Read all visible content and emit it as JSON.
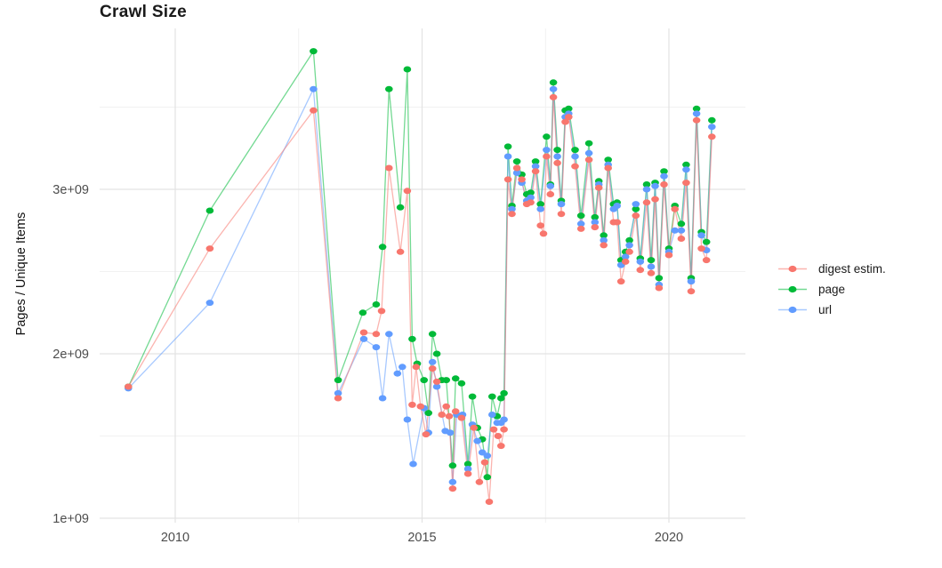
{
  "title": "Crawl Size",
  "y_axis": {
    "title": "Pages / Unique Items"
  },
  "legend": {
    "items": [
      {
        "label": "digest estim.",
        "color": "#F8766D"
      },
      {
        "label": "page",
        "color": "#00BA38"
      },
      {
        "label": "url",
        "color": "#619CFF"
      }
    ]
  },
  "chart_data": {
    "type": "line",
    "title": "Crawl Size",
    "xlabel": "",
    "ylabel": "Pages / Unique Items",
    "value_unit": "billions (1e9) of pages / unique items",
    "x_unit": "year (decimal, crawl date)",
    "xlim": [
      2008.47,
      2021.55
    ],
    "ylim": [
      0.97,
      4.01
    ],
    "grid": {
      "x_major": [
        2010,
        2015,
        2020
      ],
      "x_minor": [
        2012.5,
        2017.5
      ],
      "y_major": [
        1,
        2,
        3
      ],
      "y_minor": [
        1.5,
        2.5,
        3.5
      ]
    },
    "x_ticks": [
      {
        "t": 2010,
        "label": "2010"
      },
      {
        "t": 2015,
        "label": "2015"
      },
      {
        "t": 2020,
        "label": "2020"
      }
    ],
    "y_ticks": [
      {
        "v": 1,
        "label": "1e+09"
      },
      {
        "v": 2,
        "label": "2e+09"
      },
      {
        "v": 3,
        "label": "3e+09"
      }
    ],
    "legend_position": "right",
    "series": [
      {
        "id": "page",
        "name": "page",
        "color": "#00BA38",
        "points": [
          [
            2009.05,
            1.8
          ],
          [
            2010.7,
            2.87
          ],
          [
            2012.8,
            3.84
          ],
          [
            2013.3,
            1.84
          ],
          [
            2013.8,
            2.25
          ],
          [
            2014.07,
            2.3
          ],
          [
            2014.2,
            2.65
          ],
          [
            2014.33,
            3.61
          ],
          [
            2014.56,
            2.89
          ],
          [
            2014.7,
            3.73
          ],
          [
            2014.8,
            2.09
          ],
          [
            2014.9,
            1.94
          ],
          [
            2015.04,
            1.84
          ],
          [
            2015.13,
            1.64
          ],
          [
            2015.21,
            2.12
          ],
          [
            2015.3,
            2.0
          ],
          [
            2015.4,
            1.84
          ],
          [
            2015.49,
            1.84
          ],
          [
            2015.62,
            1.32
          ],
          [
            2015.68,
            1.85
          ],
          [
            2015.8,
            1.82
          ],
          [
            2015.93,
            1.33
          ],
          [
            2016.02,
            1.74
          ],
          [
            2016.12,
            1.55
          ],
          [
            2016.22,
            1.48
          ],
          [
            2016.32,
            1.25
          ],
          [
            2016.42,
            1.74
          ],
          [
            2016.52,
            1.62
          ],
          [
            2016.6,
            1.73
          ],
          [
            2016.66,
            1.76
          ],
          [
            2016.74,
            3.26
          ],
          [
            2016.82,
            2.9
          ],
          [
            2016.92,
            3.17
          ],
          [
            2017.02,
            3.09
          ],
          [
            2017.12,
            2.97
          ],
          [
            2017.2,
            2.98
          ],
          [
            2017.3,
            3.17
          ],
          [
            2017.4,
            2.91
          ],
          [
            2017.52,
            3.32
          ],
          [
            2017.6,
            3.03
          ],
          [
            2017.66,
            3.65
          ],
          [
            2017.74,
            3.24
          ],
          [
            2017.82,
            2.93
          ],
          [
            2017.9,
            3.48
          ],
          [
            2017.97,
            3.49
          ],
          [
            2018.1,
            3.24
          ],
          [
            2018.22,
            2.84
          ],
          [
            2018.38,
            3.28
          ],
          [
            2018.5,
            2.83
          ],
          [
            2018.58,
            3.05
          ],
          [
            2018.68,
            2.72
          ],
          [
            2018.77,
            3.18
          ],
          [
            2018.88,
            2.91
          ],
          [
            2018.95,
            2.92
          ],
          [
            2019.03,
            2.57
          ],
          [
            2019.12,
            2.62
          ],
          [
            2019.2,
            2.69
          ],
          [
            2019.33,
            2.88
          ],
          [
            2019.42,
            2.58
          ],
          [
            2019.55,
            3.03
          ],
          [
            2019.64,
            2.57
          ],
          [
            2019.72,
            3.04
          ],
          [
            2019.8,
            2.46
          ],
          [
            2019.9,
            3.11
          ],
          [
            2020.0,
            2.64
          ],
          [
            2020.12,
            2.9
          ],
          [
            2020.25,
            2.79
          ],
          [
            2020.35,
            3.15
          ],
          [
            2020.45,
            2.46
          ],
          [
            2020.56,
            3.49
          ],
          [
            2020.66,
            2.74
          ],
          [
            2020.76,
            2.68
          ],
          [
            2020.87,
            3.42
          ]
        ]
      },
      {
        "id": "url",
        "name": "url",
        "color": "#619CFF",
        "points": [
          [
            2009.05,
            1.79
          ],
          [
            2010.7,
            2.31
          ],
          [
            2012.8,
            3.61
          ],
          [
            2013.3,
            1.76
          ],
          [
            2013.82,
            2.09
          ],
          [
            2014.07,
            2.04
          ],
          [
            2014.2,
            1.73
          ],
          [
            2014.33,
            2.12
          ],
          [
            2014.5,
            1.88
          ],
          [
            2014.6,
            1.92
          ],
          [
            2014.7,
            1.6
          ],
          [
            2014.82,
            1.33
          ],
          [
            2015.04,
            1.67
          ],
          [
            2015.13,
            1.52
          ],
          [
            2015.21,
            1.95
          ],
          [
            2015.3,
            1.8
          ],
          [
            2015.47,
            1.53
          ],
          [
            2015.57,
            1.52
          ],
          [
            2015.62,
            1.22
          ],
          [
            2015.7,
            1.63
          ],
          [
            2015.82,
            1.63
          ],
          [
            2015.93,
            1.3
          ],
          [
            2016.02,
            1.57
          ],
          [
            2016.12,
            1.47
          ],
          [
            2016.22,
            1.4
          ],
          [
            2016.32,
            1.38
          ],
          [
            2016.42,
            1.63
          ],
          [
            2016.52,
            1.58
          ],
          [
            2016.6,
            1.58
          ],
          [
            2016.66,
            1.6
          ],
          [
            2016.74,
            3.2
          ],
          [
            2016.82,
            2.88
          ],
          [
            2016.92,
            3.1
          ],
          [
            2017.02,
            3.04
          ],
          [
            2017.12,
            2.93
          ],
          [
            2017.2,
            2.95
          ],
          [
            2017.3,
            3.14
          ],
          [
            2017.4,
            2.88
          ],
          [
            2017.52,
            3.24
          ],
          [
            2017.6,
            3.02
          ],
          [
            2017.66,
            3.61
          ],
          [
            2017.74,
            3.2
          ],
          [
            2017.82,
            2.91
          ],
          [
            2017.9,
            3.44
          ],
          [
            2017.97,
            3.46
          ],
          [
            2018.1,
            3.2
          ],
          [
            2018.22,
            2.79
          ],
          [
            2018.38,
            3.22
          ],
          [
            2018.5,
            2.8
          ],
          [
            2018.58,
            3.03
          ],
          [
            2018.68,
            2.69
          ],
          [
            2018.77,
            3.15
          ],
          [
            2018.88,
            2.88
          ],
          [
            2018.95,
            2.9
          ],
          [
            2019.03,
            2.54
          ],
          [
            2019.12,
            2.59
          ],
          [
            2019.2,
            2.66
          ],
          [
            2019.33,
            2.91
          ],
          [
            2019.42,
            2.56
          ],
          [
            2019.55,
            3.0
          ],
          [
            2019.64,
            2.53
          ],
          [
            2019.72,
            3.02
          ],
          [
            2019.8,
            2.42
          ],
          [
            2019.9,
            3.08
          ],
          [
            2020.0,
            2.62
          ],
          [
            2020.12,
            2.75
          ],
          [
            2020.25,
            2.75
          ],
          [
            2020.35,
            3.12
          ],
          [
            2020.45,
            2.44
          ],
          [
            2020.56,
            3.46
          ],
          [
            2020.66,
            2.72
          ],
          [
            2020.76,
            2.63
          ],
          [
            2020.87,
            3.38
          ]
        ]
      },
      {
        "id": "digest",
        "name": "digest estim.",
        "color": "#F8766D",
        "points": [
          [
            2009.05,
            1.8
          ],
          [
            2010.7,
            2.64
          ],
          [
            2012.8,
            3.48
          ],
          [
            2013.3,
            1.73
          ],
          [
            2013.82,
            2.13
          ],
          [
            2014.07,
            2.12
          ],
          [
            2014.18,
            2.26
          ],
          [
            2014.33,
            3.13
          ],
          [
            2014.56,
            2.62
          ],
          [
            2014.7,
            2.99
          ],
          [
            2014.8,
            1.69
          ],
          [
            2014.88,
            1.92
          ],
          [
            2014.97,
            1.68
          ],
          [
            2015.08,
            1.51
          ],
          [
            2015.21,
            1.91
          ],
          [
            2015.3,
            1.83
          ],
          [
            2015.4,
            1.63
          ],
          [
            2015.49,
            1.68
          ],
          [
            2015.55,
            1.62
          ],
          [
            2015.62,
            1.18
          ],
          [
            2015.68,
            1.65
          ],
          [
            2015.8,
            1.61
          ],
          [
            2015.93,
            1.27
          ],
          [
            2016.05,
            1.55
          ],
          [
            2016.16,
            1.22
          ],
          [
            2016.27,
            1.34
          ],
          [
            2016.36,
            1.1
          ],
          [
            2016.45,
            1.54
          ],
          [
            2016.54,
            1.5
          ],
          [
            2016.6,
            1.44
          ],
          [
            2016.66,
            1.54
          ],
          [
            2016.74,
            3.06
          ],
          [
            2016.82,
            2.85
          ],
          [
            2016.92,
            3.13
          ],
          [
            2017.02,
            3.06
          ],
          [
            2017.12,
            2.91
          ],
          [
            2017.2,
            2.92
          ],
          [
            2017.3,
            3.11
          ],
          [
            2017.4,
            2.78
          ],
          [
            2017.46,
            2.73
          ],
          [
            2017.52,
            3.2
          ],
          [
            2017.6,
            2.97
          ],
          [
            2017.66,
            3.56
          ],
          [
            2017.74,
            3.16
          ],
          [
            2017.82,
            2.85
          ],
          [
            2017.9,
            3.41
          ],
          [
            2017.97,
            3.44
          ],
          [
            2018.1,
            3.14
          ],
          [
            2018.22,
            2.76
          ],
          [
            2018.38,
            3.18
          ],
          [
            2018.5,
            2.77
          ],
          [
            2018.58,
            3.01
          ],
          [
            2018.68,
            2.66
          ],
          [
            2018.77,
            3.13
          ],
          [
            2018.88,
            2.8
          ],
          [
            2018.95,
            2.8
          ],
          [
            2019.03,
            2.44
          ],
          [
            2019.12,
            2.56
          ],
          [
            2019.2,
            2.62
          ],
          [
            2019.33,
            2.84
          ],
          [
            2019.42,
            2.51
          ],
          [
            2019.55,
            2.92
          ],
          [
            2019.64,
            2.49
          ],
          [
            2019.72,
            2.94
          ],
          [
            2019.8,
            2.4
          ],
          [
            2019.9,
            3.03
          ],
          [
            2020.0,
            2.6
          ],
          [
            2020.12,
            2.88
          ],
          [
            2020.25,
            2.7
          ],
          [
            2020.35,
            3.04
          ],
          [
            2020.45,
            2.38
          ],
          [
            2020.56,
            3.42
          ],
          [
            2020.66,
            2.64
          ],
          [
            2020.76,
            2.57
          ],
          [
            2020.87,
            3.32
          ]
        ]
      }
    ]
  }
}
